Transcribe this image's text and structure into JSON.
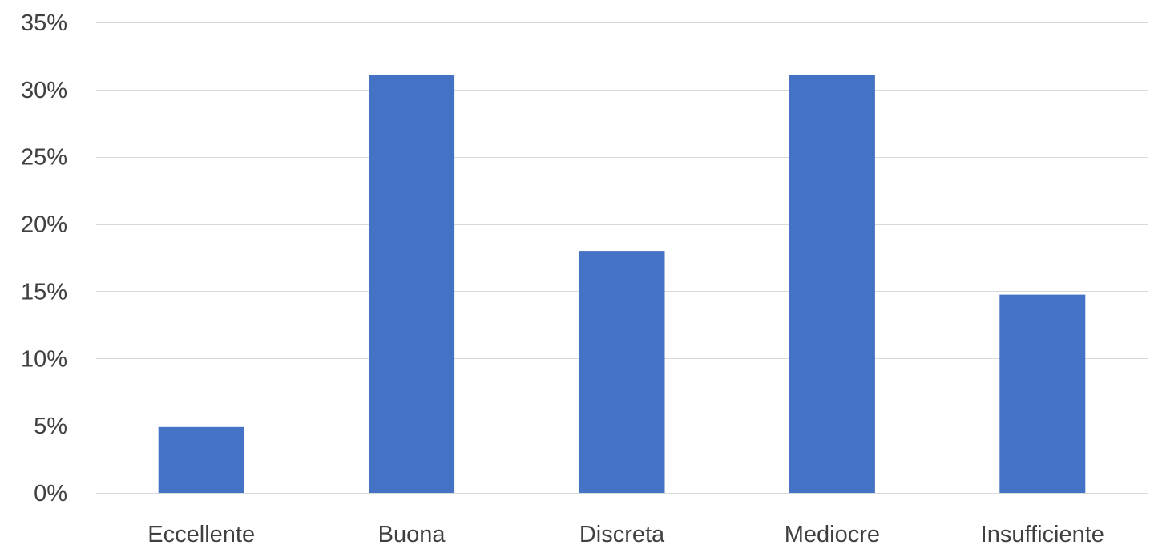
{
  "chart_data": {
    "type": "bar",
    "title": "",
    "xlabel": "",
    "ylabel": "",
    "categories": [
      "Eccellente",
      "Buona",
      "Discreta",
      "Mediocre",
      "Insufficiente"
    ],
    "values": [
      4.9,
      31.1,
      18.0,
      31.1,
      14.75
    ],
    "value_unit": "%",
    "ylim": [
      0,
      35
    ],
    "y_ticks": [
      0,
      5,
      10,
      15,
      20,
      25,
      30,
      35
    ],
    "y_tick_labels": [
      "0%",
      "5%",
      "10%",
      "15%",
      "20%",
      "25%",
      "30%",
      "35%"
    ],
    "grid": true,
    "legend": "none",
    "colors": {
      "bar": "#4472c4",
      "grid": "#d9d9d9",
      "text": "#404040"
    }
  }
}
